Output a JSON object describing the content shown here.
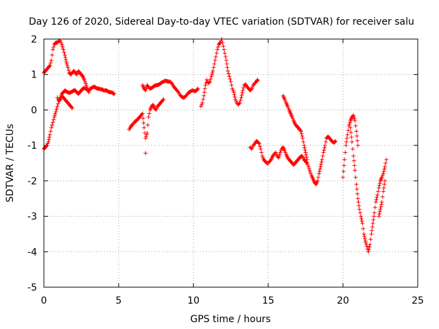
{
  "chart_data": {
    "type": "scatter",
    "title": "Day 126 of 2020, Sidereal Day-to-day VTEC variation (SDTVAR) for receiver salu",
    "xlabel": "GPS time / hours",
    "ylabel": "SDTVAR / TECUs",
    "xlim": [
      0,
      25
    ],
    "ylim": [
      -5,
      2
    ],
    "xticks": [
      "0",
      "5",
      "10",
      "15",
      "20",
      "25"
    ],
    "yticks": [
      "2",
      "1",
      "0",
      "-1",
      "-2",
      "-3",
      "-4",
      "-5"
    ],
    "grid": true,
    "marker": "+",
    "color": "#ff0000",
    "series": [
      {
        "x": [
          0.0,
          0.1,
          0.2,
          0.3,
          0.4,
          0.5,
          0.6,
          0.7,
          0.8,
          0.9,
          1.0,
          1.1,
          1.2,
          1.3,
          1.4,
          1.5,
          1.6,
          1.7,
          1.8,
          1.9,
          2.0,
          2.1,
          2.2,
          2.3,
          2.4,
          2.5,
          2.6,
          2.7,
          2.8,
          2.9,
          3.0,
          3.1,
          3.2,
          3.3,
          3.4,
          3.5,
          3.6,
          3.7,
          3.8,
          3.9,
          4.0,
          4.1,
          4.2,
          4.3,
          4.4,
          4.5,
          4.6,
          4.7
        ],
        "y": [
          -1.1,
          -1.05,
          -1.0,
          -0.9,
          -0.7,
          -0.5,
          -0.35,
          -0.2,
          -0.05,
          0.1,
          0.25,
          0.35,
          0.45,
          0.5,
          0.55,
          0.52,
          0.5,
          0.48,
          0.5,
          0.52,
          0.55,
          0.55,
          0.5,
          0.45,
          0.5,
          0.55,
          0.6,
          0.62,
          0.6,
          0.58,
          0.55,
          0.6,
          0.62,
          0.65,
          0.65,
          0.62,
          0.6,
          0.6,
          0.58,
          0.58,
          0.55,
          0.55,
          0.55,
          0.52,
          0.5,
          0.5,
          0.48,
          0.45
        ]
      },
      {
        "x": [
          0.0,
          0.1,
          0.2,
          0.3,
          0.4,
          0.5,
          0.6,
          0.7,
          0.8,
          0.9,
          1.0,
          1.1,
          1.2,
          1.3,
          1.4,
          1.5,
          1.6,
          1.7,
          1.8,
          1.9,
          2.0,
          2.1,
          2.2,
          2.3,
          2.4,
          2.5,
          2.6,
          2.7,
          2.8,
          2.9,
          3.0
        ],
        "y": [
          1.05,
          1.1,
          1.15,
          1.2,
          1.25,
          1.4,
          1.7,
          1.85,
          1.9,
          1.9,
          1.95,
          1.95,
          1.85,
          1.7,
          1.55,
          1.35,
          1.2,
          1.05,
          1.0,
          1.05,
          1.1,
          1.05,
          1.0,
          1.1,
          1.05,
          1.0,
          0.95,
          0.85,
          0.75,
          0.6,
          0.5
        ]
      },
      {
        "x": [
          0.9,
          1.0,
          1.1,
          1.2,
          1.3,
          1.4,
          1.5,
          1.6,
          1.7,
          1.8,
          1.9
        ],
        "y": [
          0.35,
          0.25,
          0.3,
          0.4,
          0.35,
          0.3,
          0.25,
          0.2,
          0.15,
          0.1,
          0.05
        ]
      },
      {
        "x": [
          5.7,
          5.8,
          5.9,
          6.0,
          6.1,
          6.2,
          6.3,
          6.4,
          6.5,
          6.6,
          6.7,
          6.8,
          6.9,
          7.0,
          7.1,
          7.2,
          7.3,
          7.4,
          7.5,
          7.6,
          7.7,
          7.8,
          7.9,
          8.0
        ],
        "y": [
          -0.55,
          -0.48,
          -0.42,
          -0.38,
          -0.32,
          -0.3,
          -0.25,
          -0.2,
          -0.15,
          -0.1,
          -0.5,
          -0.8,
          -0.65,
          -0.2,
          0.0,
          0.1,
          0.15,
          0.05,
          0.0,
          0.1,
          0.15,
          0.2,
          0.25,
          0.3
        ]
      },
      {
        "x": [
          6.6,
          6.7,
          6.8,
          6.9,
          7.0,
          7.1,
          7.2,
          7.3,
          7.4,
          7.5,
          7.6,
          7.7,
          7.8,
          7.9,
          8.0,
          8.1,
          8.2,
          8.3,
          8.4,
          8.5,
          8.6,
          8.7,
          8.8,
          8.9,
          9.0,
          9.1,
          9.2,
          9.3,
          9.4,
          9.5,
          9.6,
          9.7,
          9.8,
          9.9,
          10.0,
          10.1,
          10.2,
          10.3
        ],
        "y": [
          0.7,
          0.6,
          0.55,
          0.7,
          0.65,
          0.6,
          0.62,
          0.65,
          0.68,
          0.7,
          0.7,
          0.72,
          0.75,
          0.78,
          0.8,
          0.82,
          0.82,
          0.8,
          0.8,
          0.78,
          0.72,
          0.65,
          0.6,
          0.55,
          0.5,
          0.42,
          0.38,
          0.35,
          0.35,
          0.4,
          0.45,
          0.5,
          0.52,
          0.55,
          0.55,
          0.52,
          0.55,
          0.6
        ]
      },
      {
        "x": [
          10.5,
          10.6,
          10.7,
          10.8,
          10.9,
          11.0,
          11.1,
          11.2,
          11.3,
          11.4,
          11.5,
          11.6,
          11.7,
          11.8,
          11.9,
          12.0,
          12.1,
          12.2,
          12.3,
          12.4,
          12.5,
          12.6,
          12.7,
          12.8,
          12.9,
          13.0,
          13.1,
          13.2,
          13.3,
          13.4,
          13.5,
          13.6,
          13.7,
          13.8,
          13.9,
          14.0,
          14.1,
          14.2,
          14.3
        ],
        "y": [
          0.1,
          0.2,
          0.4,
          0.7,
          0.85,
          0.75,
          0.8,
          0.95,
          1.1,
          1.3,
          1.5,
          1.7,
          1.85,
          1.9,
          2.0,
          1.8,
          1.6,
          1.4,
          1.1,
          0.95,
          0.8,
          0.6,
          0.5,
          0.3,
          0.2,
          0.15,
          0.2,
          0.35,
          0.55,
          0.7,
          0.72,
          0.65,
          0.6,
          0.55,
          0.6,
          0.7,
          0.75,
          0.8,
          0.85
        ]
      },
      {
        "x": [
          13.8,
          13.9,
          14.0,
          14.1,
          14.2,
          14.3,
          14.4,
          14.5,
          14.6,
          14.7,
          14.8,
          14.9,
          15.0,
          15.1,
          15.2,
          15.3,
          15.4,
          15.5,
          15.6,
          15.7,
          15.8,
          15.9,
          16.0,
          16.1,
          16.2,
          16.3,
          16.4,
          16.5,
          16.6,
          16.7,
          16.8,
          16.9,
          17.0,
          17.1,
          17.2,
          17.3,
          17.4,
          17.5,
          17.6,
          17.7,
          17.8,
          17.9,
          18.0,
          18.1,
          18.2,
          18.3,
          18.4,
          18.5,
          18.6,
          18.7,
          18.8,
          18.9,
          19.0,
          19.1,
          19.2,
          19.3,
          19.4,
          19.5
        ],
        "y": [
          -1.05,
          -1.1,
          -1.0,
          -0.95,
          -0.88,
          -0.9,
          -0.95,
          -1.1,
          -1.3,
          -1.4,
          -1.45,
          -1.5,
          -1.5,
          -1.45,
          -1.4,
          -1.3,
          -1.25,
          -1.2,
          -1.3,
          -1.35,
          -1.2,
          -1.1,
          -1.05,
          -1.15,
          -1.25,
          -1.35,
          -1.4,
          -1.45,
          -1.5,
          -1.55,
          -1.5,
          -1.45,
          -1.4,
          -1.35,
          -1.3,
          -1.32,
          -1.4,
          -1.45,
          -1.5,
          -1.6,
          -1.75,
          -1.85,
          -1.95,
          -2.05,
          -2.1,
          -2.0,
          -1.8,
          -1.6,
          -1.4,
          -1.2,
          -1.0,
          -0.8,
          -0.75,
          -0.8,
          -0.85,
          -0.9,
          -0.92,
          -0.88
        ]
      },
      {
        "x": [
          16.0,
          16.1,
          16.2,
          16.3,
          16.4,
          16.5,
          16.6,
          16.7,
          16.8,
          16.9,
          17.0,
          17.1,
          17.2,
          17.3,
          17.4,
          17.5,
          17.6
        ],
        "y": [
          0.4,
          0.3,
          0.2,
          0.1,
          0.0,
          -0.1,
          -0.2,
          -0.3,
          -0.4,
          -0.45,
          -0.5,
          -0.55,
          -0.6,
          -0.8,
          -1.0,
          -1.2,
          -1.4
        ]
      },
      {
        "x": [
          20.0,
          20.1,
          20.2,
          20.3,
          20.4,
          20.5,
          20.6,
          20.7,
          20.8,
          20.9,
          21.0
        ],
        "y": [
          -1.9,
          -1.4,
          -1.0,
          -0.7,
          -0.45,
          -0.3,
          -0.2,
          -0.15,
          -0.3,
          -0.6,
          -1.0
        ]
      },
      {
        "x": [
          20.5,
          20.6,
          20.7,
          20.8,
          20.9,
          21.0,
          21.1,
          21.2,
          21.3,
          21.4,
          21.5,
          21.6,
          21.7,
          21.8,
          21.9,
          22.0,
          22.1,
          22.2,
          22.3,
          22.4,
          22.5,
          22.6,
          22.7,
          22.8,
          22.9
        ],
        "y": [
          -0.5,
          -0.9,
          -1.3,
          -1.7,
          -2.1,
          -2.5,
          -2.8,
          -3.0,
          -3.2,
          -3.5,
          -3.7,
          -3.85,
          -4.0,
          -3.8,
          -3.5,
          -3.2,
          -2.9,
          -2.6,
          -2.4,
          -2.2,
          -2.0,
          -1.9,
          -1.8,
          -1.6,
          -1.4
        ]
      },
      {
        "x": [
          22.4,
          22.5,
          22.6,
          22.7,
          22.8
        ],
        "y": [
          -3.0,
          -2.8,
          -2.6,
          -2.3,
          -2.0
        ]
      }
    ],
    "isolated_points": [
      {
        "x": 6.8,
        "y": -1.22
      }
    ]
  }
}
